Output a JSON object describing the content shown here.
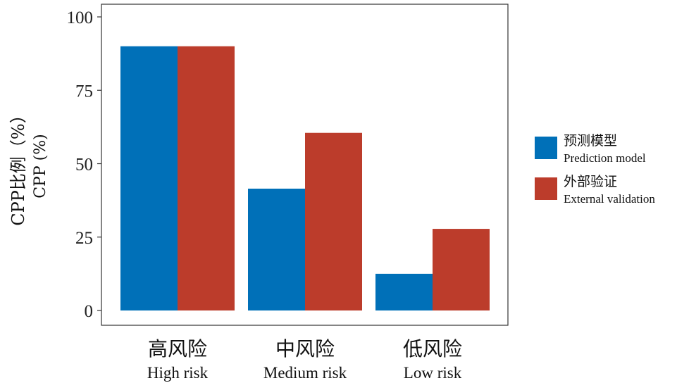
{
  "chart_data": {
    "type": "bar",
    "categories": [
      {
        "zh": "高风险",
        "en": "High risk"
      },
      {
        "zh": "中风险",
        "en": "Medium risk"
      },
      {
        "zh": "低风险",
        "en": "Low risk"
      }
    ],
    "series": [
      {
        "name_zh": "预测模型",
        "name_en": "Prediction model",
        "color": "#0070b8",
        "values": [
          90,
          41.5,
          12.5
        ]
      },
      {
        "name_zh": "外部验证",
        "name_en": "External validation",
        "color": "#bc3c2b",
        "values": [
          90,
          60.5,
          27.8
        ]
      }
    ],
    "ylabel_zh": "CPP比例（%）",
    "ylabel_en": "CPP (%)",
    "ylim": [
      0,
      100
    ],
    "yticks": [
      0,
      25,
      50,
      75,
      100
    ],
    "legend_position": "right",
    "grid": false
  }
}
